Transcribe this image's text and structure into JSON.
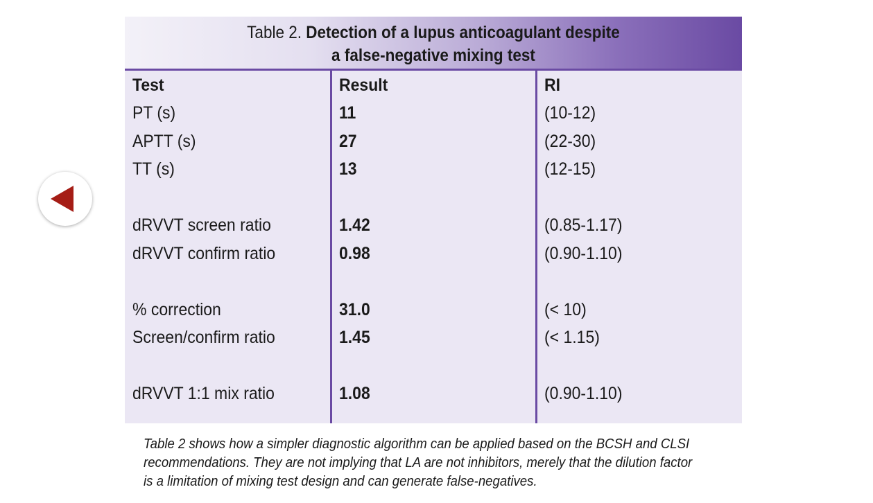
{
  "navigation": {
    "back_icon": "left-triangle-arrow",
    "accent_color": "#a51d16"
  },
  "table": {
    "title_prefix": "Table 2.",
    "title_bold_line1": "Detection of a lupus anticoagulant despite",
    "title_line2": "a false-negative mixing test",
    "headers": {
      "test": "Test",
      "result": "Result",
      "ri": "RI"
    },
    "rows": [
      {
        "test": "PT (s)",
        "result": "11",
        "ri": "(10-12)"
      },
      {
        "test": "APTT (s)",
        "result": "27",
        "ri": "(22-30)"
      },
      {
        "test": "TT (s)",
        "result": "13",
        "ri": "(12-15)"
      },
      {
        "test": "dRVVT screen ratio",
        "result": "1.42",
        "ri": "(0.85-1.17)"
      },
      {
        "test": "dRVVT confirm ratio",
        "result": "0.98",
        "ri": "(0.90-1.10)"
      },
      {
        "test": "% correction",
        "result": "31.0",
        "ri": "(< 10)"
      },
      {
        "test": "Screen/confirm ratio",
        "result": "1.45",
        "ri": "(< 1.15)"
      },
      {
        "test": "dRVVT 1:1 mix ratio",
        "result": "1.08",
        "ri": "(0.90-1.10)"
      }
    ],
    "colors": {
      "background": "#ebe7f4",
      "rule": "#6a4aa3"
    }
  },
  "caption": {
    "line1": "Table 2 shows how a simpler diagnostic algorithm can be applied based on the BCSH and CLSI",
    "line2": "recommendations. They are not implying that LA are not inhibitors, merely that the dilution factor",
    "line3": "is a limitation of mixing test design and can generate false-negatives."
  }
}
